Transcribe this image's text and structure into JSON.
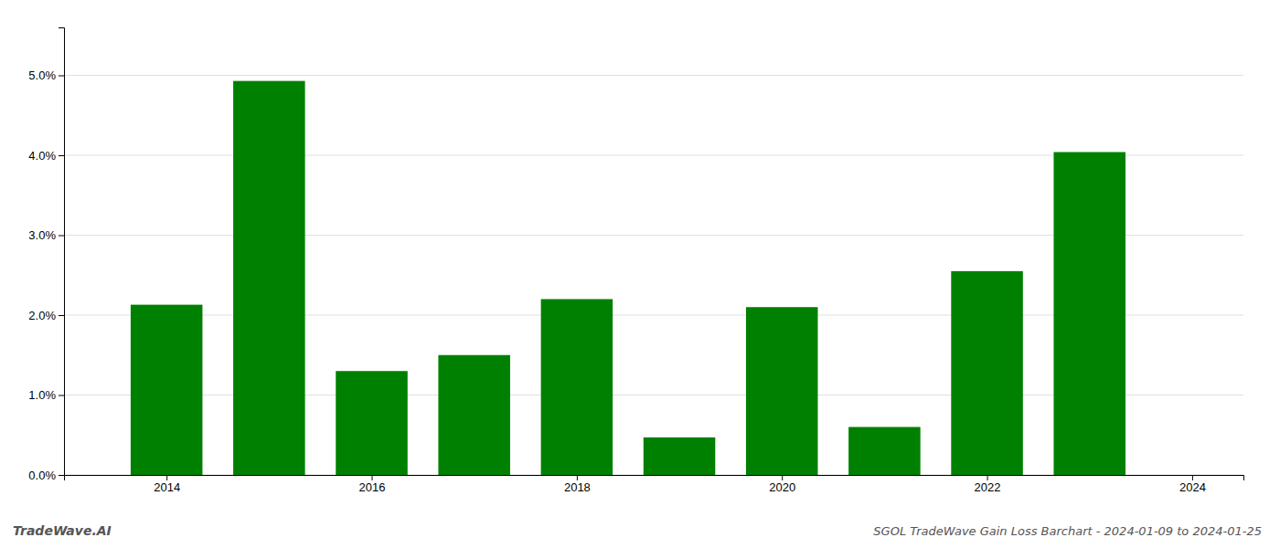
{
  "chart_data": {
    "type": "bar",
    "title": "SGOL TradeWave Gain Loss Barchart - 2024-01-09 to 2024-01-25",
    "annotations": [
      "TradeWave.AI"
    ],
    "x": [
      2014,
      2015,
      2016,
      2017,
      2018,
      2019,
      2020,
      2021,
      2022,
      2023
    ],
    "values": [
      0.0213,
      0.0493,
      0.013,
      0.015,
      0.022,
      0.0047,
      0.021,
      0.006,
      0.0255,
      0.0404
    ],
    "color": "#008000",
    "xlim": [
      2013.0,
      2024.5
    ],
    "xticks": [
      2014,
      2016,
      2018,
      2020,
      2022,
      2024
    ],
    "ylim": [
      0.0,
      0.056
    ],
    "yticks": [
      {
        "value": 0.0,
        "label": "0.0%"
      },
      {
        "value": 0.01,
        "label": "1.0%"
      },
      {
        "value": 0.02,
        "label": "2.0%"
      },
      {
        "value": 0.03,
        "label": "3.0%"
      },
      {
        "value": 0.04,
        "label": "4.0%"
      },
      {
        "value": 0.05,
        "label": "5.0%"
      }
    ],
    "grid": true
  }
}
